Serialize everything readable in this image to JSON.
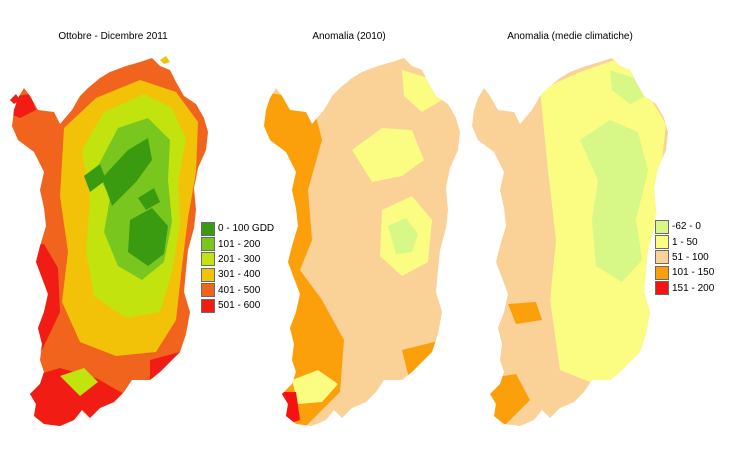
{
  "panels": [
    {
      "title": "Ottobre - Dicembre 2011",
      "legend": [
        {
          "label": "0 - 100 GDD",
          "color": "#3a9b10"
        },
        {
          "label": "101 - 200",
          "color": "#79c71e"
        },
        {
          "label": "201 - 300",
          "color": "#c2e30e"
        },
        {
          "label": "301 - 400",
          "color": "#f2c208"
        },
        {
          "label": "401 - 500",
          "color": "#f0641e"
        },
        {
          "label": "501 - 600",
          "color": "#f11c13"
        }
      ]
    },
    {
      "title": "Anomalia (2010)"
    },
    {
      "title": "Anomalia (medie climatiche)",
      "legend": [
        {
          "label": "-62 - 0",
          "color": "#d7f787"
        },
        {
          "label": "1 - 50",
          "color": "#fbfc82"
        },
        {
          "label": "51 - 100",
          "color": "#fad196"
        },
        {
          "label": "101 - 150",
          "color": "#fba00a"
        },
        {
          "label": "151 - 200",
          "color": "#f41212"
        }
      ]
    }
  ]
}
